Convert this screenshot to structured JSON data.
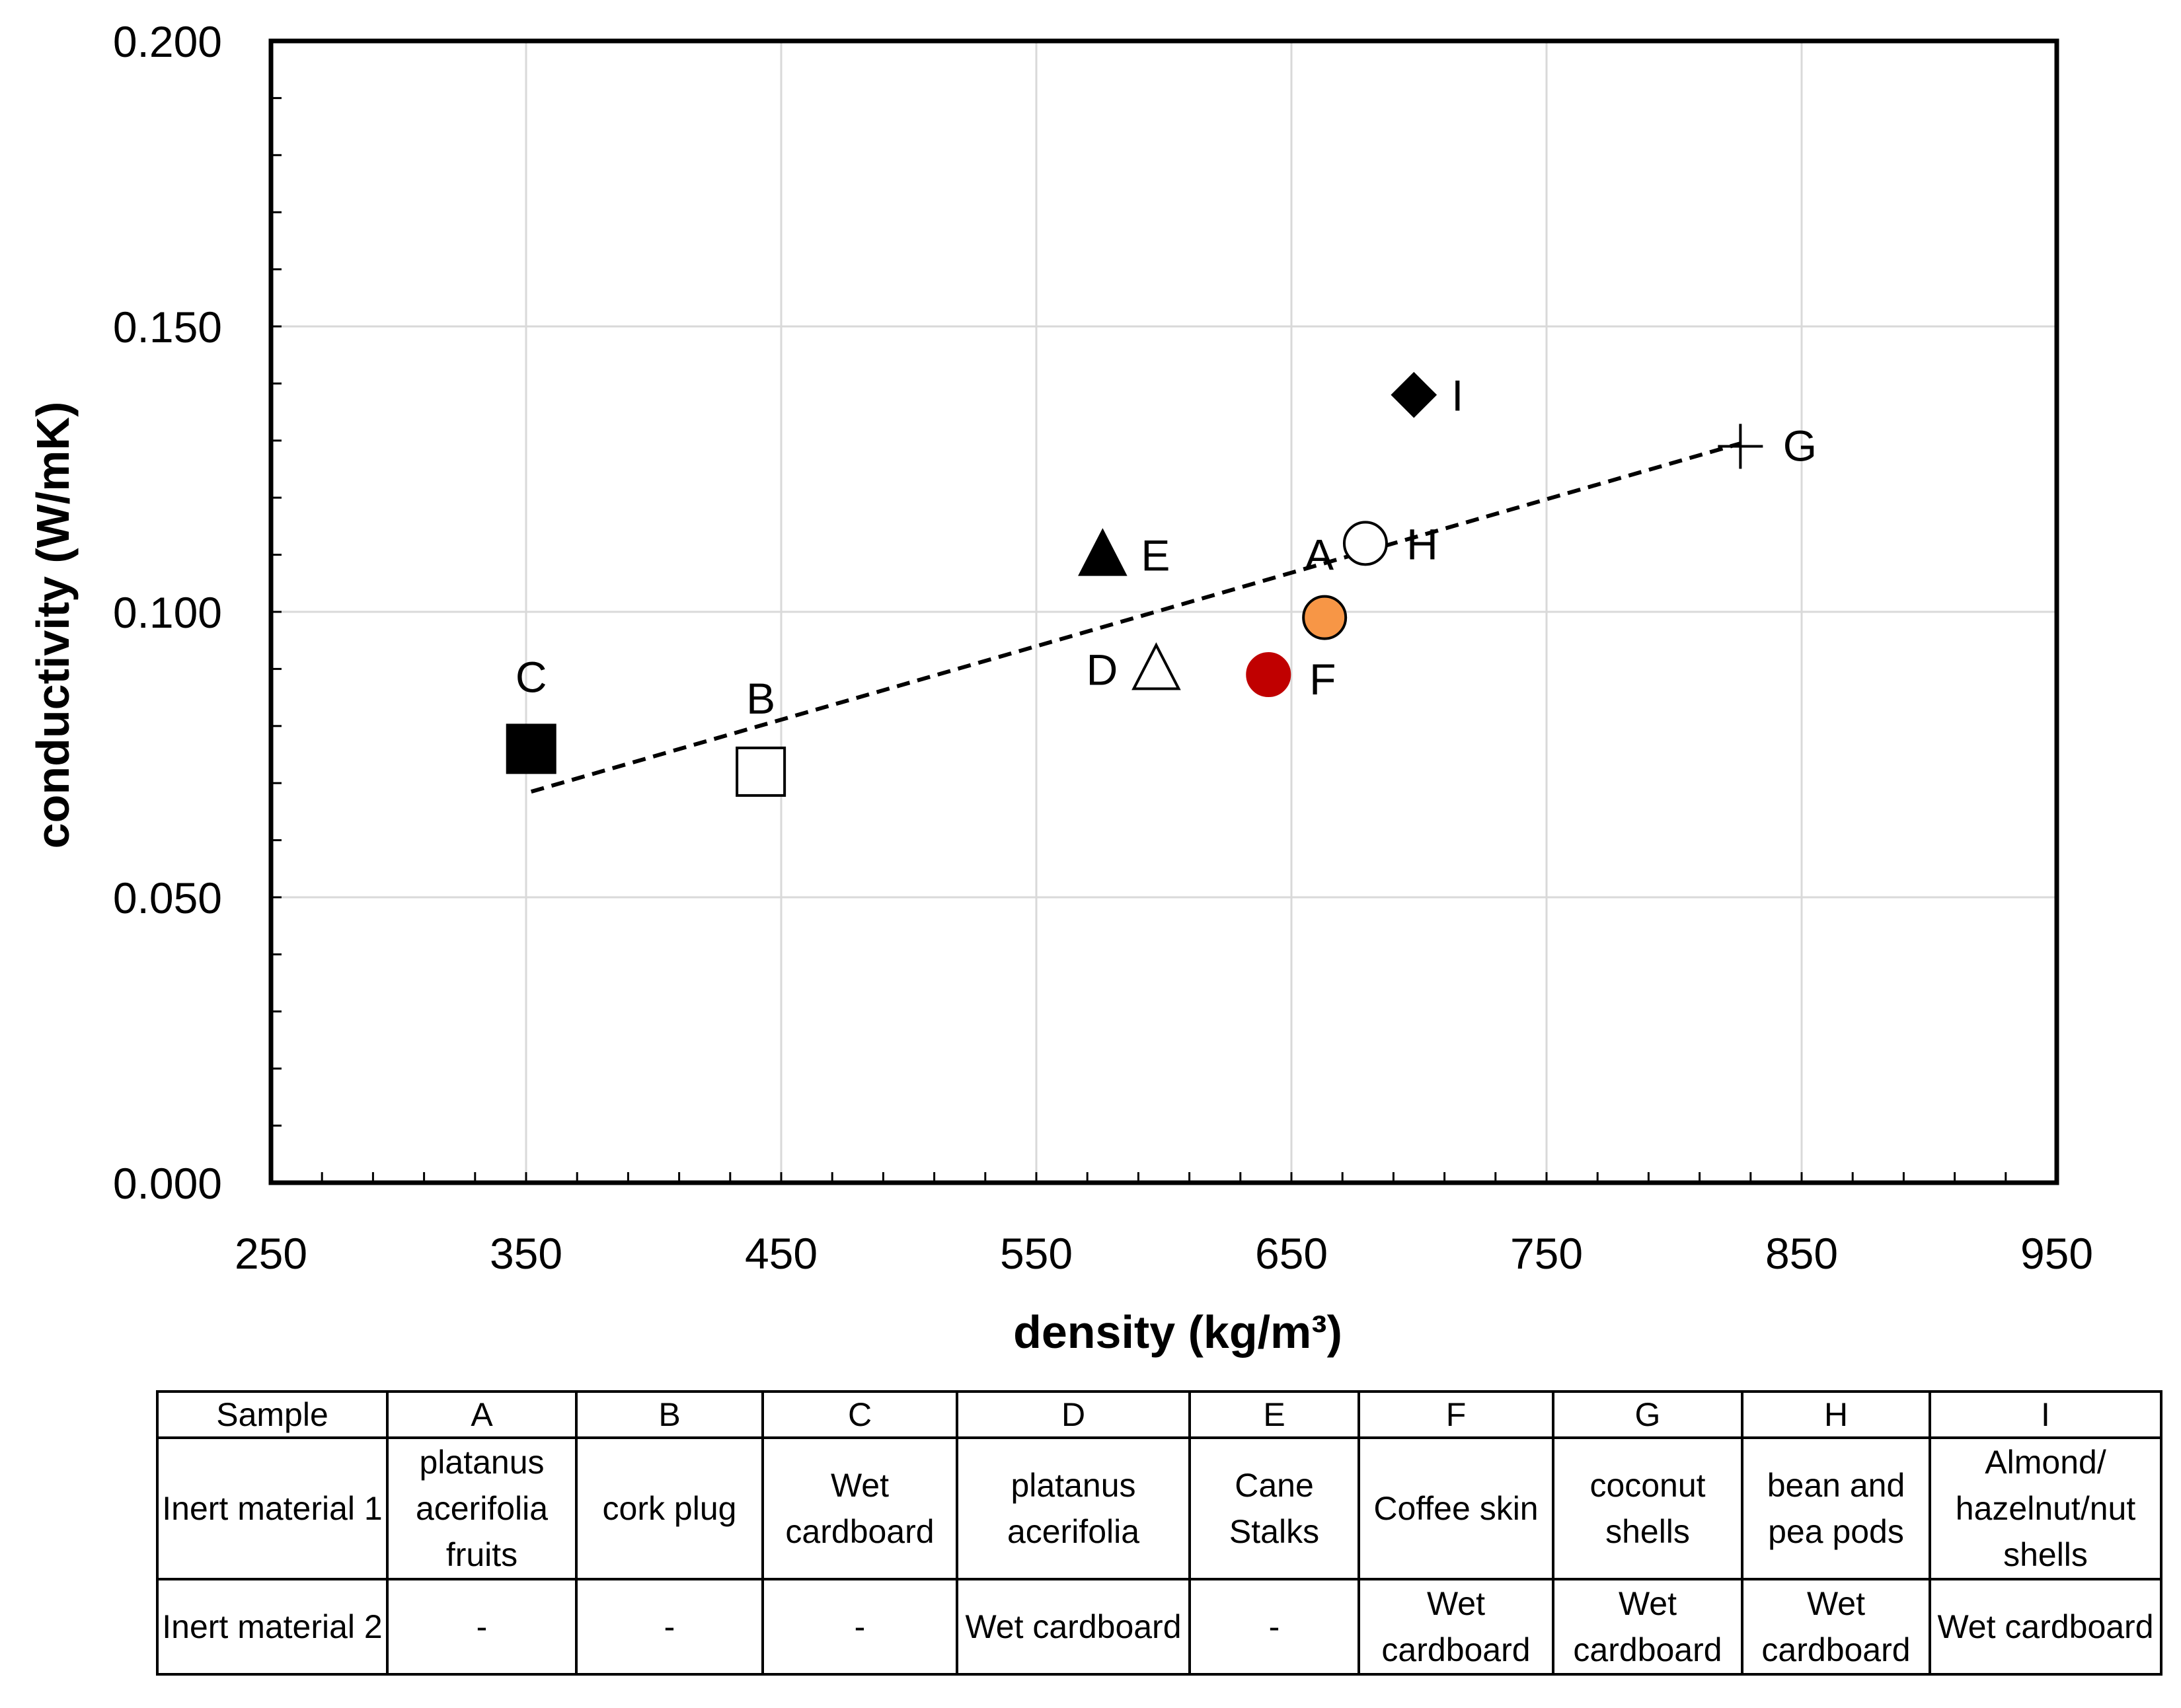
{
  "chart_data": {
    "type": "scatter",
    "title": "",
    "xlabel": "density (kg/m³)",
    "ylabel": "conductivity (W/mK)",
    "xlim": [
      250,
      950
    ],
    "ylim": [
      0.0,
      0.2
    ],
    "x_ticks": [
      "250",
      "350",
      "450",
      "550",
      "650",
      "750",
      "850",
      "950"
    ],
    "y_ticks": [
      "0.000",
      "0.050",
      "0.100",
      "0.150",
      "0.200"
    ],
    "grid": true,
    "points": [
      {
        "label": "A",
        "x": 663,
        "y": 0.099,
        "marker": "circle",
        "fill": "#F79646",
        "stroke": "#000000"
      },
      {
        "label": "B",
        "x": 442,
        "y": 0.072,
        "marker": "square",
        "fill": "#FFFFFF",
        "stroke": "#000000"
      },
      {
        "label": "C",
        "x": 352,
        "y": 0.076,
        "marker": "square",
        "fill": "#000000",
        "stroke": "#000000"
      },
      {
        "label": "D",
        "x": 597,
        "y": 0.09,
        "marker": "triangle",
        "fill": "#FFFFFF",
        "stroke": "#000000"
      },
      {
        "label": "E",
        "x": 576,
        "y": 0.11,
        "marker": "triangle",
        "fill": "#000000",
        "stroke": "#000000"
      },
      {
        "label": "F",
        "x": 641,
        "y": 0.089,
        "marker": "circle",
        "fill": "#C00000",
        "stroke": "#C00000"
      },
      {
        "label": "G",
        "x": 826,
        "y": 0.129,
        "marker": "plus",
        "fill": "none",
        "stroke": "#000000"
      },
      {
        "label": "H",
        "x": 679,
        "y": 0.112,
        "marker": "circle",
        "fill": "#FFFFFF",
        "stroke": "#000000"
      },
      {
        "label": "I",
        "x": 698,
        "y": 0.138,
        "marker": "diamond",
        "fill": "#000000",
        "stroke": "#000000"
      }
    ],
    "trendline": {
      "type": "linear",
      "style": "dashed",
      "x": [
        352,
        826
      ],
      "y": [
        0.0685,
        0.1295
      ]
    }
  },
  "table": {
    "header": [
      "Sample",
      "A",
      "B",
      "C",
      "D",
      "E",
      "F",
      "G",
      "H",
      "I"
    ],
    "rows": [
      [
        "Inert material 1",
        "platanus acerifolia fruits",
        "cork plug",
        "Wet cardboard",
        "platanus acerifolia",
        "Cane Stalks",
        "Coffee skin",
        "coconut shells",
        "bean and pea pods",
        "Almond/ hazelnut/nut shells"
      ],
      [
        "Inert material 2",
        "-",
        "-",
        "-",
        "Wet cardboard",
        "-",
        "Wet cardboard",
        "Wet cardboard",
        "Wet cardboard",
        "Wet cardboard"
      ]
    ]
  }
}
